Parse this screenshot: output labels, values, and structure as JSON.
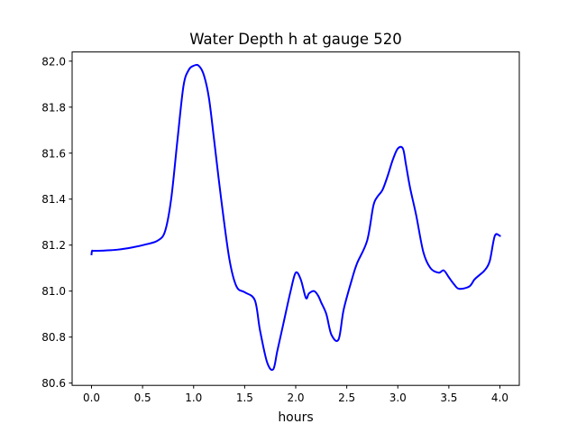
{
  "chart_data": {
    "type": "line",
    "title": "Water Depth h at gauge 520",
    "xlabel": "hours",
    "ylabel": "",
    "xlim": [
      -0.19,
      4.19
    ],
    "ylim": [
      80.59,
      82.04
    ],
    "xticks": [
      0.0,
      0.5,
      1.0,
      1.5,
      2.0,
      2.5,
      3.0,
      3.5,
      4.0
    ],
    "xtick_labels": [
      "0.0",
      "0.5",
      "1.0",
      "1.5",
      "2.0",
      "2.5",
      "3.0",
      "3.5",
      "4.0"
    ],
    "yticks": [
      80.6,
      80.8,
      81.0,
      81.2,
      81.4,
      81.6,
      81.8,
      82.0
    ],
    "ytick_labels": [
      "80.6",
      "80.8",
      "81.0",
      "81.2",
      "81.4",
      "81.6",
      "81.8",
      "82.0"
    ],
    "grid": false,
    "series": [
      {
        "color": "#0000ff",
        "x": [
          0.0,
          0.005,
          0.02,
          0.1,
          0.25,
          0.4,
          0.55,
          0.65,
          0.72,
          0.78,
          0.84,
          0.9,
          0.95,
          1.0,
          1.05,
          1.1,
          1.15,
          1.2,
          1.27,
          1.35,
          1.42,
          1.5,
          1.6,
          1.65,
          1.72,
          1.78,
          1.82,
          1.88,
          1.95,
          2.0,
          2.05,
          2.1,
          2.13,
          2.18,
          2.22,
          2.25,
          2.3,
          2.35,
          2.42,
          2.47,
          2.55,
          2.6,
          2.7,
          2.76,
          2.8,
          2.85,
          2.9,
          2.95,
          3.0,
          3.05,
          3.08,
          3.12,
          3.18,
          3.25,
          3.32,
          3.4,
          3.45,
          3.5,
          3.55,
          3.6,
          3.7,
          3.75,
          3.8,
          3.85,
          3.9,
          3.95,
          4.0
        ],
        "y": [
          81.16,
          81.175,
          81.175,
          81.176,
          81.18,
          81.19,
          81.205,
          81.22,
          81.26,
          81.4,
          81.65,
          81.89,
          81.96,
          81.98,
          81.98,
          81.94,
          81.84,
          81.66,
          81.4,
          81.14,
          81.02,
          80.995,
          80.96,
          80.83,
          80.69,
          80.66,
          80.74,
          80.86,
          81.0,
          81.08,
          81.05,
          80.97,
          80.99,
          81.0,
          80.98,
          80.95,
          80.9,
          80.81,
          80.79,
          80.92,
          81.05,
          81.12,
          81.22,
          81.37,
          81.41,
          81.44,
          81.5,
          81.57,
          81.62,
          81.62,
          81.55,
          81.45,
          81.33,
          81.17,
          81.1,
          81.08,
          81.09,
          81.06,
          81.03,
          81.01,
          81.02,
          81.05,
          81.07,
          81.09,
          81.13,
          81.24,
          81.24
        ]
      }
    ]
  }
}
